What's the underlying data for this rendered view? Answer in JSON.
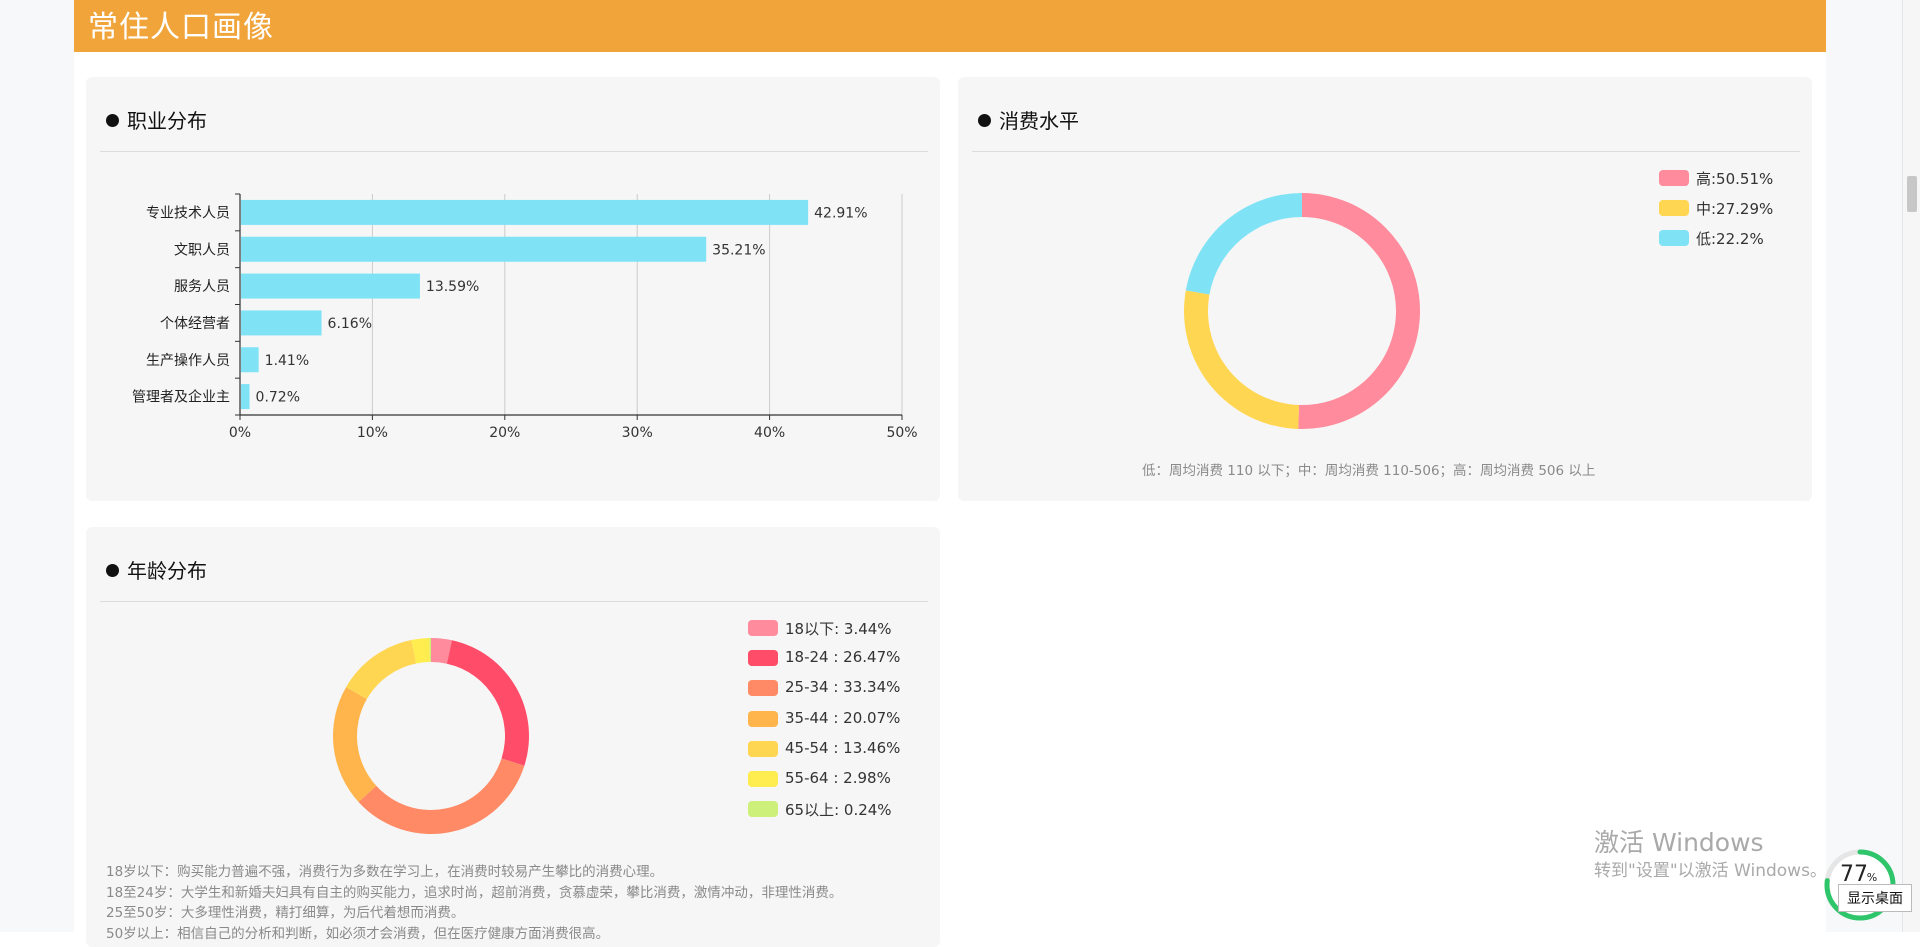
{
  "header": {
    "title": "常住人口画像"
  },
  "occupation": {
    "title": "职业分布",
    "chart_data": {
      "type": "bar",
      "orientation": "horizontal",
      "categories": [
        "专业技术人员",
        "文职人员",
        "服务人员",
        "个体经营者",
        "生产操作人员",
        "管理者及企业主"
      ],
      "values": [
        42.91,
        35.21,
        13.59,
        6.16,
        1.41,
        0.72
      ],
      "data_labels": [
        "42.91%",
        "35.21%",
        "13.59%",
        "6.16%",
        "1.41%",
        "0.72%"
      ],
      "xlim": [
        0,
        50
      ],
      "x_ticks": [
        "0%",
        "10%",
        "20%",
        "30%",
        "40%",
        "50%"
      ],
      "grid": "vertical",
      "color": "#7fe3f5"
    }
  },
  "consumption": {
    "title": "消费水平",
    "chart_data": {
      "type": "pie",
      "style": "donut",
      "categories": [
        "高",
        "中",
        "低"
      ],
      "values": [
        50.51,
        27.29,
        22.2
      ],
      "colors": [
        "#ff8b9c",
        "#ffd651",
        "#7fe3f5"
      ],
      "legend": [
        "高:50.51%",
        "中:27.29%",
        "低:22.2%"
      ],
      "legend_position": "top-right"
    },
    "note": "低：周均消费 110 以下；中：周均消费 110-506；高：周均消费 506 以上"
  },
  "age": {
    "title": "年龄分布",
    "chart_data": {
      "type": "pie",
      "style": "donut",
      "categories": [
        "18以下",
        "18-24",
        "25-34",
        "35-44",
        "45-54",
        "55-64",
        "65以上"
      ],
      "values": [
        3.44,
        26.47,
        33.34,
        20.07,
        13.46,
        2.98,
        0.24
      ],
      "colors": [
        "#ff8b9c",
        "#ff4c69",
        "#ff8a65",
        "#ffb54c",
        "#ffd651",
        "#ffec4f",
        "#cdf07a"
      ],
      "legend": [
        "18以下: 3.44%",
        "18-24 : 26.47%",
        "25-34 : 33.34%",
        "35-44 : 20.07%",
        "45-54 : 13.46%",
        "55-64 : 2.98%",
        "65以上: 0.24%"
      ],
      "legend_position": "right"
    },
    "notes": [
      "18岁以下：购买能力普遍不强，消费行为多数在学习上，在消费时较易产生攀比的消费心理。",
      "18至24岁：大学生和新婚夫妇具有自主的购买能力，追求时尚，超前消费，贪慕虚荣，攀比消费，激情冲动，非理性消费。",
      "25至50岁：大多理性消费，精打细算，为后代着想而消费。",
      "50岁以上：相信自己的分析和判断，如必须才会消费，但在医疗健康方面消费很高。"
    ]
  },
  "watermark": {
    "title": "激活 Windows",
    "subtitle": "转到\"设置\"以激活 Windows。"
  },
  "monitor": {
    "value": "77",
    "unit": "%",
    "fraction": 0.77,
    "tooltip": "显示桌面"
  }
}
